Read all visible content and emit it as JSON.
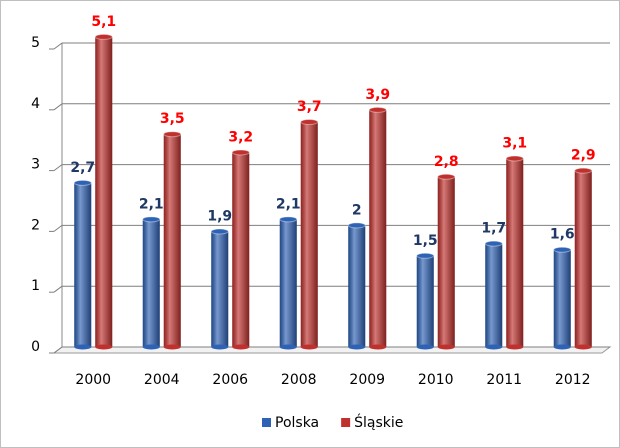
{
  "chart_data": {
    "type": "bar",
    "categories": [
      "2000",
      "2004",
      "2006",
      "2008",
      "2009",
      "2010",
      "2011",
      "2012"
    ],
    "series": [
      {
        "name": "Polska",
        "color": "#2e62b5",
        "label_color": "#1f3864",
        "values": [
          2.7,
          2.1,
          1.9,
          2.1,
          2,
          1.5,
          1.7,
          1.6
        ],
        "value_labels": [
          "2,7",
          "2,1",
          "1,9",
          "2,1",
          "2",
          "1,5",
          "1,7",
          "1,6"
        ]
      },
      {
        "name": "Śląskie",
        "color": "#c0312e",
        "label_color": "#ff0000",
        "values": [
          5.1,
          3.5,
          3.2,
          3.7,
          3.9,
          2.8,
          3.1,
          2.9
        ],
        "value_labels": [
          "5,1",
          "3,5",
          "3,2",
          "3,7",
          "3,9",
          "2,8",
          "3,1",
          "2,9"
        ]
      }
    ],
    "ylim": [
      0,
      5
    ],
    "yticks": [
      0,
      1,
      2,
      3,
      4,
      5
    ],
    "grid": true,
    "legend": "bottom"
  }
}
